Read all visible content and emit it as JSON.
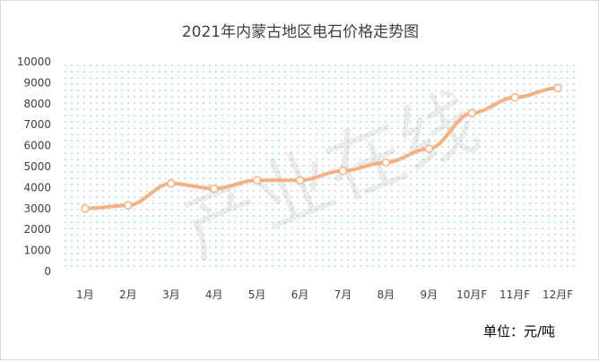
{
  "chart_data": {
    "type": "line",
    "title": "2021年内蒙古地区电石价格走势图",
    "categories": [
      "1月",
      "2月",
      "3月",
      "4月",
      "5月",
      "6月",
      "7月",
      "8月",
      "9月",
      "10月F",
      "11月F",
      "12月F"
    ],
    "series": [
      {
        "values": [
          3000,
          3150,
          4200,
          3950,
          4350,
          4350,
          4800,
          5200,
          5850,
          7550,
          8300,
          8750
        ]
      }
    ],
    "yticks": [
      "0",
      "1000",
      "2000",
      "3000",
      "4000",
      "5000",
      "6000",
      "7000",
      "8000",
      "9000",
      "10000"
    ],
    "ylim": [
      0,
      10000
    ],
    "unit_label": "单位：元/吨",
    "watermark": "产业在线",
    "line_color": "#f4b183",
    "marker_fill": "#ffffff",
    "plot_pattern_color": "#7fc3c3"
  }
}
